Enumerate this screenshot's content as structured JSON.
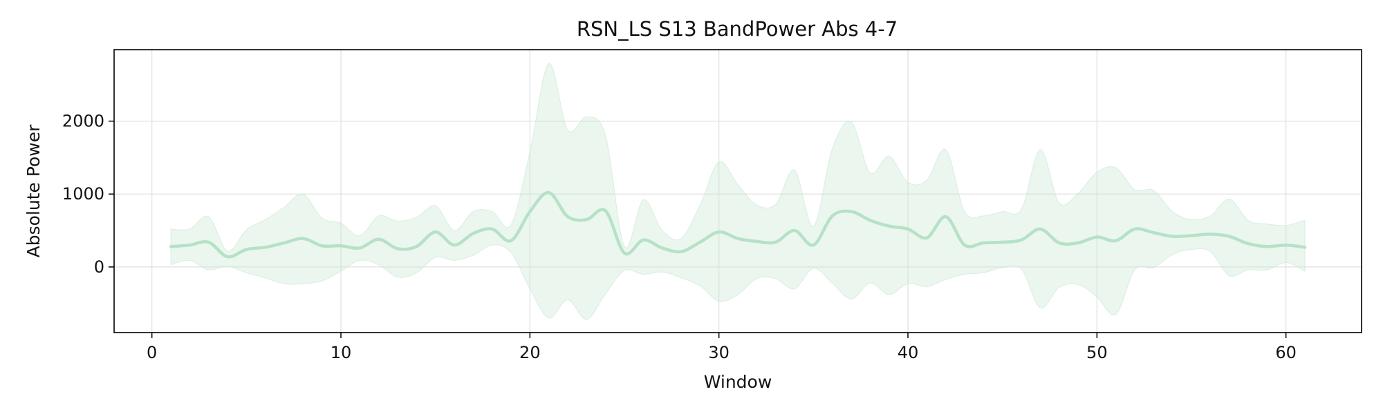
{
  "chart_data": {
    "type": "line",
    "title": "RSN_LS S13 BandPower Abs 4-7",
    "xlabel": "Window",
    "ylabel": "Absolute Power",
    "xlim": [
      -2,
      64
    ],
    "ylim": [
      -900,
      2980
    ],
    "xticks": [
      0,
      10,
      20,
      30,
      40,
      50,
      60
    ],
    "yticks": [
      0,
      1000,
      2000
    ],
    "grid": true,
    "colors": {
      "line": "#b5e2c6",
      "band": "#c6e6d1"
    },
    "series": [
      {
        "x": [
          1,
          2,
          3,
          4,
          5,
          6,
          7,
          8,
          9,
          10,
          11,
          12,
          13,
          14,
          15,
          16,
          17,
          18,
          19,
          20,
          21,
          22,
          23,
          24,
          25,
          26,
          27,
          28,
          29,
          30,
          31,
          32,
          33,
          34,
          35,
          36,
          37,
          38,
          39,
          40,
          41,
          42,
          43,
          44,
          45,
          46,
          47,
          48,
          49,
          50,
          51,
          52,
          53,
          54,
          55,
          56,
          57,
          58,
          59,
          60,
          61
        ],
        "mean": [
          280,
          300,
          340,
          140,
          240,
          270,
          330,
          390,
          290,
          290,
          260,
          380,
          250,
          280,
          480,
          300,
          460,
          520,
          360,
          760,
          1020,
          690,
          650,
          770,
          190,
          370,
          260,
          210,
          340,
          480,
          390,
          350,
          340,
          500,
          300,
          700,
          760,
          640,
          560,
          520,
          400,
          690,
          300,
          330,
          340,
          370,
          520,
          330,
          330,
          410,
          360,
          520,
          470,
          420,
          430,
          450,
          420,
          320,
          280,
          300,
          270
        ],
        "upper": [
          520,
          520,
          690,
          220,
          510,
          650,
          820,
          1000,
          670,
          600,
          430,
          700,
          630,
          680,
          840,
          500,
          760,
          760,
          580,
          1580,
          2790,
          1880,
          2060,
          1800,
          280,
          920,
          500,
          390,
          850,
          1440,
          1130,
          850,
          860,
          1330,
          560,
          1620,
          1990,
          1290,
          1520,
          1160,
          1190,
          1610,
          760,
          700,
          760,
          790,
          1610,
          880,
          1010,
          1300,
          1360,
          1060,
          1050,
          760,
          650,
          700,
          930,
          640,
          590,
          570,
          640
        ],
        "lower": [
          30,
          90,
          -40,
          10,
          -80,
          -150,
          -230,
          -230,
          -190,
          -60,
          90,
          30,
          -140,
          -80,
          130,
          90,
          160,
          300,
          200,
          -300,
          -700,
          -450,
          -720,
          -370,
          -50,
          -100,
          -70,
          -150,
          -260,
          -470,
          -380,
          -160,
          -160,
          -300,
          -20,
          -220,
          -440,
          -220,
          -380,
          -230,
          -270,
          -170,
          -100,
          -80,
          -10,
          -30,
          -560,
          -280,
          -240,
          -410,
          -650,
          -40,
          -10,
          170,
          240,
          210,
          -120,
          -40,
          -40,
          60,
          -60
        ]
      }
    ]
  }
}
